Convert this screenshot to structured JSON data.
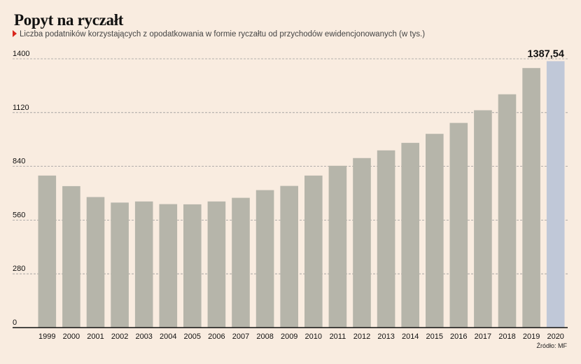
{
  "header": {
    "title": "Popyt na ryczałt",
    "subtitle": "Liczba podatników korzystających z opodatkowania w formie ryczałtu od przychodów ewidencjonowanych (w tys.)"
  },
  "footer": {
    "source": "Źródło: MF"
  },
  "colors": {
    "bar": "#b6b5aa",
    "highlight": "#c0c8d8",
    "grid": "#9a9a9a",
    "background": "#f9ece0"
  },
  "chart_data": {
    "type": "bar",
    "categories": [
      "1999",
      "2000",
      "2001",
      "2002",
      "2003",
      "2004",
      "2005",
      "2006",
      "2007",
      "2008",
      "2009",
      "2010",
      "2011",
      "2012",
      "2013",
      "2014",
      "2015",
      "2016",
      "2017",
      "2018",
      "2019",
      "2020"
    ],
    "series": [
      {
        "values": [
          792,
          737,
          680,
          651,
          657,
          643,
          642,
          657,
          676,
          716,
          738,
          792,
          843,
          883,
          923,
          962,
          1009,
          1066,
          1132,
          1215,
          1352,
          1387.54
        ]
      }
    ],
    "highlight_index": 21,
    "value_label": "1387,54",
    "yticks": [
      0,
      280,
      560,
      840,
      1120,
      1400
    ],
    "ylim": [
      0,
      1400
    ],
    "grid": true,
    "xlabel": "",
    "ylabel": ""
  }
}
